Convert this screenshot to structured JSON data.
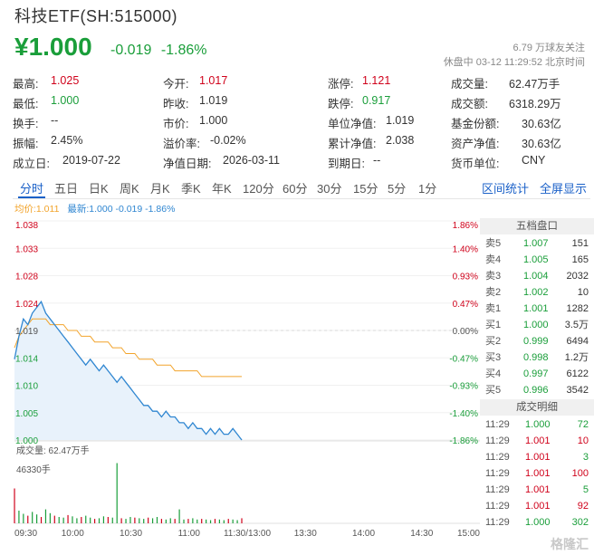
{
  "header": {
    "title": "科技ETF(SH:515000)",
    "price": "¥1.000",
    "change": "-0.019",
    "change_pct": "-1.86%",
    "followers": "6.79 万球友关注",
    "status": "休盘中 03-12 11:29:52 北京时间"
  },
  "stats": {
    "high_label": "最高:",
    "high": "1.025",
    "low_label": "最低:",
    "low": "1.000",
    "turnover_label": "换手:",
    "turnover": "--",
    "amplitude_label": "振幅:",
    "amplitude": "2.45%",
    "founded_label": "成立日:",
    "founded": "2019-07-22",
    "open_label": "今开:",
    "open": "1.017",
    "prev_close_label": "昨收:",
    "prev_close": "1.019",
    "mkt_price_label": "市价:",
    "mkt_price": "1.000",
    "premium_label": "溢价率:",
    "premium": "-0.02%",
    "nav_date_label": "净值日期:",
    "nav_date": "2026-03-11",
    "limit_up_label": "涨停:",
    "limit_up": "1.121",
    "limit_down_label": "跌停:",
    "limit_down": "0.917",
    "unit_nav_label": "单位净值:",
    "unit_nav": "1.019",
    "cum_nav_label": "累计净值:",
    "cum_nav": "2.038",
    "maturity_label": "到期日:",
    "maturity": "--",
    "volume_label": "成交量:",
    "volume": "62.47万手",
    "amount_label": "成交额:",
    "amount": "6318.29万",
    "fund_share_label": "基金份额:",
    "fund_share": "30.63亿",
    "net_asset_label": "资产净值:",
    "net_asset": "30.63亿",
    "currency_label": "货币单位:",
    "currency": "CNY"
  },
  "tabs": [
    "分时",
    "五日",
    "日K",
    "周K",
    "月K",
    "季K",
    "年K",
    "120分",
    "60分",
    "30分",
    "15分",
    "5分",
    "1分"
  ],
  "tab_right": [
    "区间统计",
    "全屏显示"
  ],
  "legend": {
    "avg": "均价:1.011",
    "latest_label": "最新:",
    "latest": "1.000",
    "latest_chg": "-0.019",
    "latest_pct": "-1.86%"
  },
  "chart_data": {
    "type": "line",
    "title": "",
    "price_ticks": [
      "1.038",
      "1.033",
      "1.028",
      "1.024",
      "1.019",
      "1.014",
      "1.010",
      "1.005",
      "1.000"
    ],
    "pct_ticks": [
      "1.86%",
      "1.40%",
      "0.93%",
      "0.47%",
      "0.00%",
      "-0.47%",
      "-0.93%",
      "-1.40%",
      "-1.86%"
    ],
    "x_ticks": [
      "09:30",
      "10:00",
      "10:30",
      "11:00",
      "11:30/13:00",
      "13:30",
      "14:00",
      "14:30",
      "15:00"
    ],
    "ylim": [
      1.0,
      1.038
    ],
    "prev_close": 1.019,
    "volume_label": "成交量: 62.47万手",
    "volume_max_label": "46330手",
    "price_series": [
      1.014,
      1.018,
      1.021,
      1.02,
      1.022,
      1.023,
      1.024,
      1.022,
      1.021,
      1.02,
      1.019,
      1.018,
      1.017,
      1.016,
      1.015,
      1.014,
      1.013,
      1.014,
      1.013,
      1.012,
      1.013,
      1.012,
      1.011,
      1.01,
      1.011,
      1.01,
      1.009,
      1.008,
      1.007,
      1.006,
      1.006,
      1.005,
      1.005,
      1.004,
      1.005,
      1.004,
      1.004,
      1.003,
      1.003,
      1.002,
      1.003,
      1.002,
      1.002,
      1.001,
      1.002,
      1.001,
      1.002,
      1.001,
      1.001,
      1.002,
      1.001,
      1.0
    ],
    "avg_series": [
      1.016,
      1.018,
      1.019,
      1.02,
      1.021,
      1.021,
      1.021,
      1.021,
      1.02,
      1.02,
      1.02,
      1.02,
      1.019,
      1.019,
      1.019,
      1.018,
      1.018,
      1.018,
      1.017,
      1.017,
      1.017,
      1.017,
      1.016,
      1.016,
      1.016,
      1.015,
      1.015,
      1.015,
      1.014,
      1.014,
      1.014,
      1.014,
      1.013,
      1.013,
      1.013,
      1.013,
      1.012,
      1.012,
      1.012,
      1.012,
      1.012,
      1.012,
      1.011,
      1.011,
      1.011,
      1.011,
      1.011,
      1.011,
      1.011,
      1.011,
      1.011,
      1.011
    ],
    "volume_series": [
      0.55,
      0.2,
      0.15,
      0.12,
      0.18,
      0.14,
      0.1,
      0.22,
      0.16,
      0.12,
      0.1,
      0.09,
      0.13,
      0.11,
      0.08,
      0.1,
      0.12,
      0.09,
      0.07,
      0.08,
      0.11,
      0.1,
      0.09,
      0.95,
      0.08,
      0.07,
      0.1,
      0.09,
      0.08,
      0.07,
      0.09,
      0.08,
      0.1,
      0.07,
      0.06,
      0.08,
      0.07,
      0.22,
      0.06,
      0.07,
      0.08,
      0.06,
      0.07,
      0.06,
      0.05,
      0.07,
      0.06,
      0.05,
      0.07,
      0.06,
      0.05,
      0.08
    ]
  },
  "order_book": {
    "title": "五档盘口",
    "rows": [
      {
        "label": "卖5",
        "price": "1.007",
        "vol": "151"
      },
      {
        "label": "卖4",
        "price": "1.005",
        "vol": "165"
      },
      {
        "label": "卖3",
        "price": "1.004",
        "vol": "2032"
      },
      {
        "label": "卖2",
        "price": "1.002",
        "vol": "10"
      },
      {
        "label": "卖1",
        "price": "1.001",
        "vol": "1282"
      },
      {
        "label": "买1",
        "price": "1.000",
        "vol": "3.5万"
      },
      {
        "label": "买2",
        "price": "0.999",
        "vol": "6494"
      },
      {
        "label": "买3",
        "price": "0.998",
        "vol": "1.2万"
      },
      {
        "label": "买4",
        "price": "0.997",
        "vol": "6122"
      },
      {
        "label": "买5",
        "price": "0.996",
        "vol": "3542"
      }
    ]
  },
  "trades": {
    "title": "成交明细",
    "rows": [
      {
        "time": "11:29",
        "price": "1.000",
        "vol": "72"
      },
      {
        "time": "11:29",
        "price": "1.001",
        "vol": "10"
      },
      {
        "time": "11:29",
        "price": "1.001",
        "vol": "3"
      },
      {
        "time": "11:29",
        "price": "1.001",
        "vol": "100"
      },
      {
        "time": "11:29",
        "price": "1.001",
        "vol": "5"
      },
      {
        "time": "11:29",
        "price": "1.001",
        "vol": "92"
      },
      {
        "time": "11:29",
        "price": "1.000",
        "vol": "302"
      }
    ]
  },
  "colors": {
    "up": "#d0021b",
    "down": "#1a9e3a",
    "price_line": "#2f86d1",
    "avg_line": "#f2a42c",
    "fill": "#e8f2fb",
    "link": "#1b61c8"
  },
  "watermark": "格隆汇"
}
